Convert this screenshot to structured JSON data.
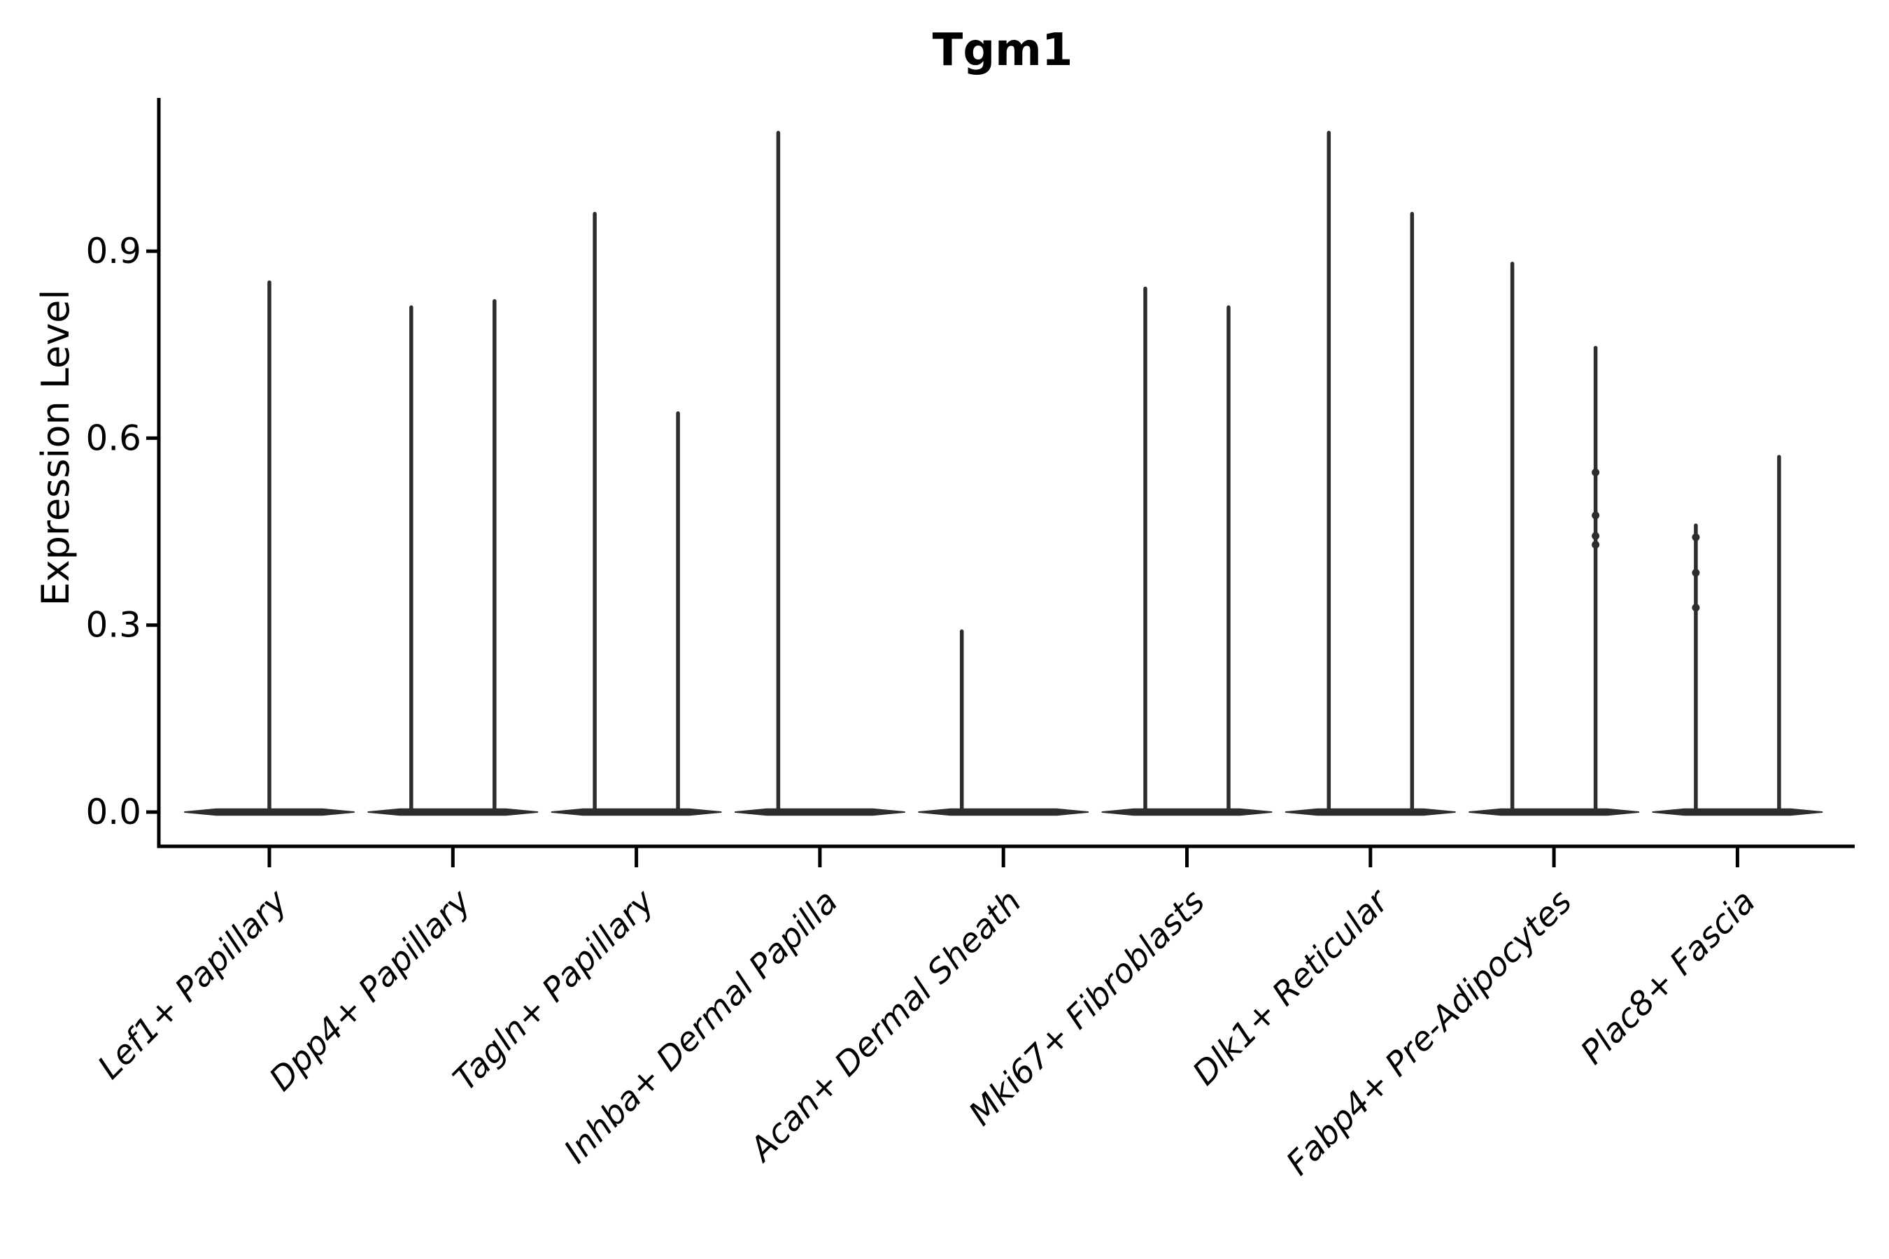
{
  "chart_data": {
    "type": "violin",
    "title": "Tgm1",
    "ylabel": "Expression Level",
    "xlabel": "",
    "legend": "none",
    "grid": false,
    "ylim": [
      0,
      1.15
    ],
    "ytick_labels": [
      "0.0",
      "0.3",
      "0.6",
      "0.9"
    ],
    "ytick_values": [
      0.0,
      0.3,
      0.6,
      0.9
    ],
    "categories": [
      "Lef1+ Papillary",
      "Dpp4+ Papillary",
      "Tagln+ Papillary",
      "Inhba+ Dermal Papilla",
      "Acan+ Dermal Sheath",
      "Mki67+ Fibroblasts",
      "Dlk1+ Reticular",
      "Fabp4+ Pre-Adipocytes",
      "Plac8+ Fascia"
    ],
    "violins": [
      {
        "category": "Lef1+ Papillary",
        "spikes": [
          {
            "position": "center",
            "max": 0.85,
            "points": []
          }
        ]
      },
      {
        "category": "Dpp4+ Papillary",
        "spikes": [
          {
            "position": "left",
            "max": 0.81,
            "points": []
          },
          {
            "position": "right",
            "max": 0.82,
            "points": []
          }
        ]
      },
      {
        "category": "Tagln+ Papillary",
        "spikes": [
          {
            "position": "left",
            "max": 0.96,
            "points": []
          },
          {
            "position": "right",
            "max": 0.64,
            "points": []
          }
        ]
      },
      {
        "category": "Inhba+ Dermal Papilla",
        "spikes": [
          {
            "position": "left",
            "max": 1.09,
            "points": []
          }
        ]
      },
      {
        "category": "Acan+ Dermal Sheath",
        "spikes": [
          {
            "position": "left",
            "max": 0.29,
            "points": []
          }
        ]
      },
      {
        "category": "Mki67+ Fibroblasts",
        "spikes": [
          {
            "position": "left",
            "max": 0.84,
            "points": []
          },
          {
            "position": "right",
            "max": 0.81,
            "points": []
          }
        ]
      },
      {
        "category": "Dlk1+ Reticular",
        "spikes": [
          {
            "position": "left",
            "max": 1.09,
            "points": []
          },
          {
            "position": "right",
            "max": 0.96,
            "points": []
          }
        ]
      },
      {
        "category": "Fabp4+ Pre-Adipocytes",
        "spikes": [
          {
            "position": "left",
            "max": 0.88,
            "points": []
          },
          {
            "position": "right",
            "max": 0.745,
            "points": [
              0.545,
              0.476,
              0.443,
              0.429
            ]
          }
        ]
      },
      {
        "category": "Plac8+ Fascia",
        "spikes": [
          {
            "position": "left",
            "max": 0.46,
            "points": [
              0.441,
              0.384,
              0.328
            ]
          },
          {
            "position": "right",
            "max": 0.57,
            "points": []
          }
        ]
      }
    ],
    "colors": {
      "violin": "#2d2d2d",
      "axis": "#000000",
      "text": "#000000",
      "background": "#ffffff"
    }
  }
}
